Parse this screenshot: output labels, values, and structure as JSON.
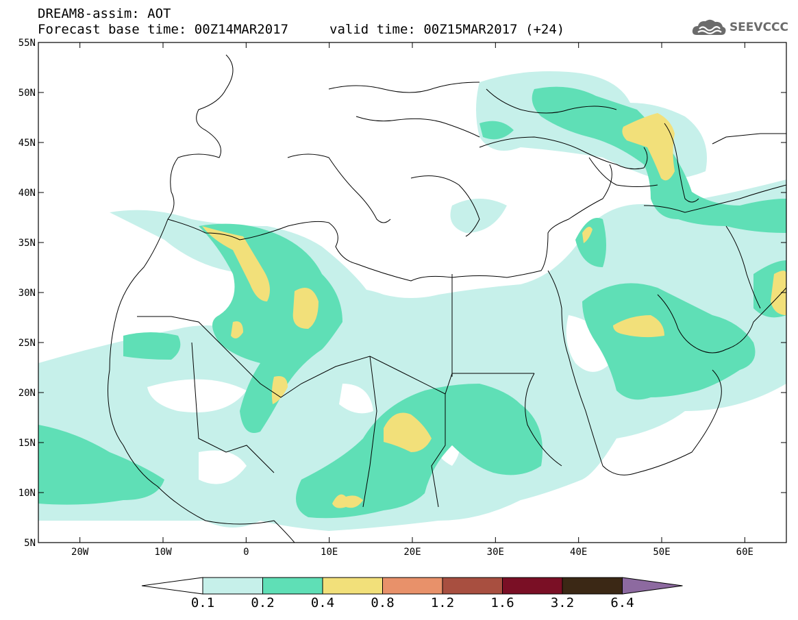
{
  "header": {
    "line1": "DREAM8-assim: AOT",
    "base_time": "Forecast base time: 00Z14MAR2017",
    "valid_time": "valid time: 00Z15MAR2017 (+24)"
  },
  "logo": {
    "text": "SEEVCCC",
    "icon": "cloud-icon",
    "color": "#6b6b6b"
  },
  "axes": {
    "lon_min": -25,
    "lon_max": 65,
    "lat_min": 5,
    "lat_max": 55,
    "lat_ticks": [
      "55N",
      "50N",
      "45N",
      "40N",
      "35N",
      "30N",
      "25N",
      "20N",
      "15N",
      "10N",
      "5N"
    ],
    "lon_ticks": [
      "20W",
      "10W",
      "0",
      "10E",
      "20E",
      "30E",
      "40E",
      "50E",
      "60E"
    ]
  },
  "colorbar": {
    "labels": [
      "0.1",
      "0.2",
      "0.4",
      "0.8",
      "1.2",
      "1.6",
      "3.2",
      "6.4"
    ],
    "colors": [
      "#ffffff",
      "#c6f0ea",
      "#5fdfb6",
      "#f2e07a",
      "#e8916a",
      "#a84f40",
      "#7a0f25",
      "#3b2815",
      "#8d6aa0"
    ]
  }
}
